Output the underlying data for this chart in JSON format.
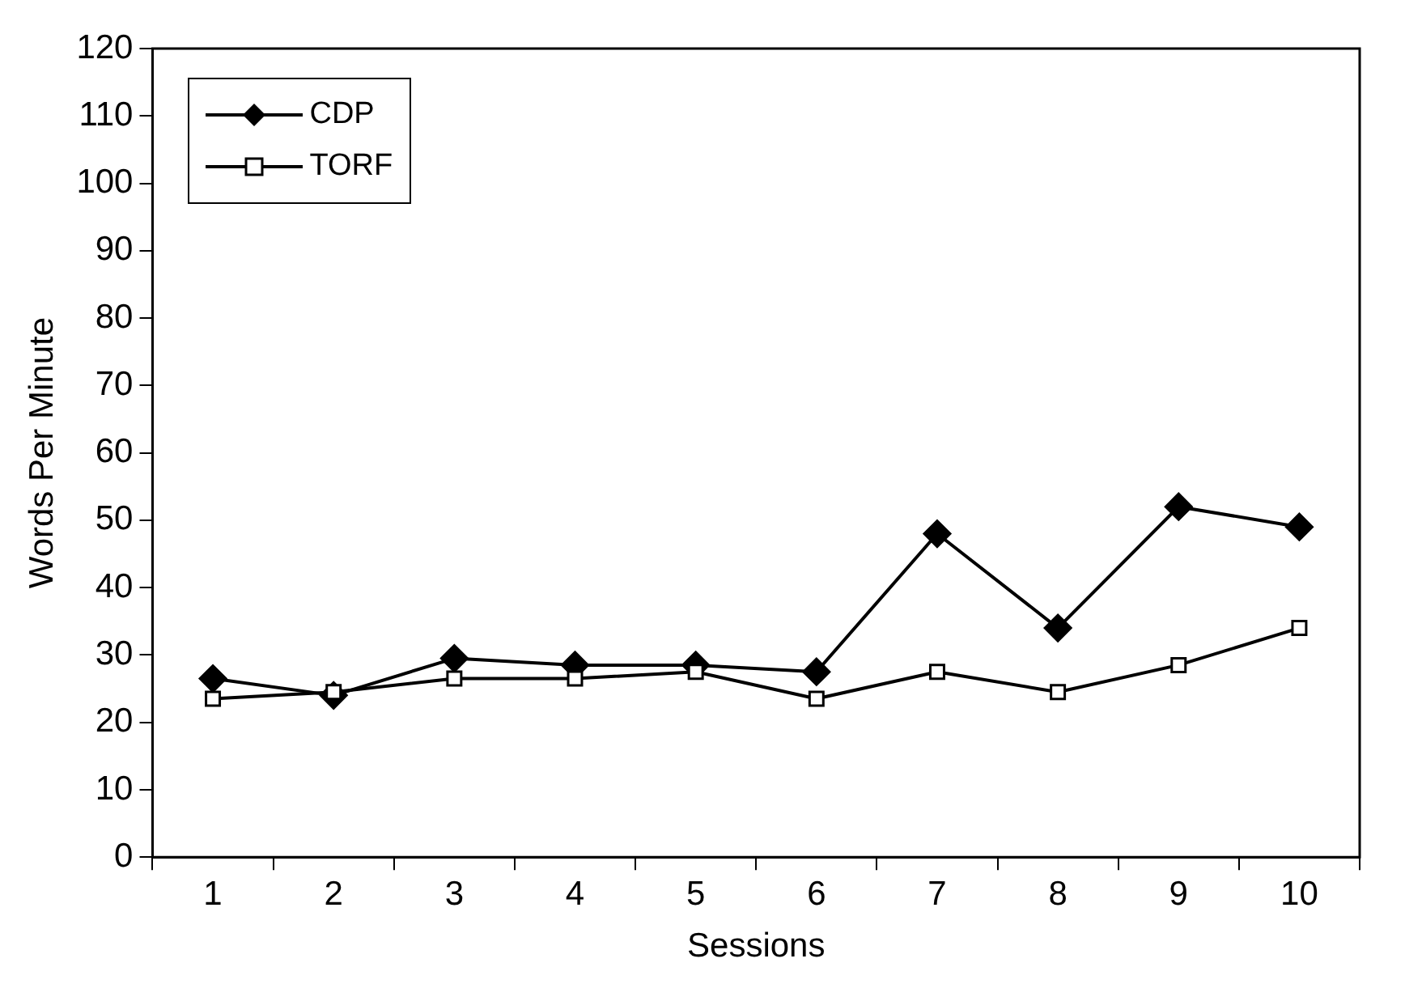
{
  "chart_data": {
    "type": "line",
    "xlabel": "Sessions",
    "ylabel": "Words Per Minute",
    "categories": [
      "1",
      "2",
      "3",
      "4",
      "5",
      "6",
      "7",
      "8",
      "9",
      "10"
    ],
    "series": [
      {
        "name": "CDP",
        "color": "#000000",
        "marker": "diamond",
        "values": [
          26.5,
          24,
          29.5,
          28.5,
          28.5,
          27.5,
          48,
          34,
          52,
          49
        ]
      },
      {
        "name": "TORF",
        "color": "#000000",
        "marker": "square",
        "values": [
          23.5,
          24.5,
          26.5,
          26.5,
          27.5,
          23.5,
          27.5,
          24.5,
          28.5,
          34
        ]
      }
    ],
    "ylim": [
      0,
      120
    ],
    "yticks": [
      0,
      10,
      20,
      30,
      40,
      50,
      60,
      70,
      80,
      90,
      100,
      110,
      120
    ],
    "grid": false,
    "legend": "top left",
    "line_style": "solid"
  }
}
